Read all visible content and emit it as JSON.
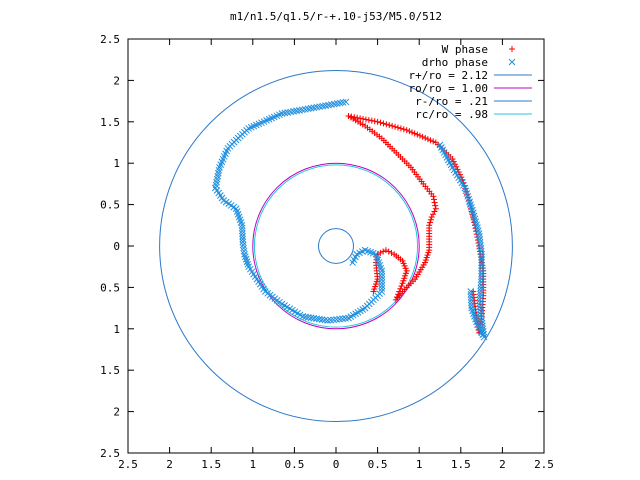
{
  "title": "m1/n1.5/q1.5/r-+.10-j53/M5.0/512",
  "colors": {
    "w_phase": "#ff0000",
    "drho_phase": "#1f8fdf",
    "r_plus": "#2b78c9",
    "r_o": "#c000c0",
    "r_minus": "#2b78c9",
    "r_c": "#22c8dd",
    "axis": "#000000"
  },
  "chart_data": {
    "type": "scatter",
    "title": "m1/n1.5/q1.5/r-+.10-j53/M5.0/512",
    "xlabel": "",
    "ylabel": "",
    "xlim": [
      -2.5,
      2.5
    ],
    "ylim": [
      -2.5,
      2.5
    ],
    "x_tick_values": [
      -2.5,
      -2,
      -1.5,
      -1,
      -0.5,
      0,
      0.5,
      1,
      1.5,
      2,
      2.5
    ],
    "x_tick_labels": [
      "2.5",
      "2",
      "1.5",
      "1",
      "0.5",
      "0",
      "0.5",
      "1",
      "1.5",
      "2",
      "2.5"
    ],
    "y_tick_values": [
      2.5,
      2,
      1.5,
      1,
      0.5,
      0,
      -0.5,
      -1,
      -1.5,
      -2,
      -2.5
    ],
    "y_tick_labels": [
      "2.5",
      "2",
      "1.5",
      "1",
      "0.5",
      "0",
      "0.5",
      "1",
      "1.5",
      "2",
      "2.5"
    ],
    "legend_position": "top-right",
    "legend": [
      {
        "label": "W phase",
        "marker": "plus",
        "color": "#ff0000"
      },
      {
        "label": "drho phase",
        "marker": "x",
        "color": "#1f8fdf"
      },
      {
        "label": "r+/ro = 2.12",
        "marker": "line",
        "color": "#2b78c9"
      },
      {
        "label": "ro/ro = 1.00",
        "marker": "line",
        "color": "#c000c0"
      },
      {
        "label": "r-/ro = .21",
        "marker": "line",
        "color": "#2b78c9"
      },
      {
        "label": "rc/ro = .98",
        "marker": "line",
        "color": "#22c8dd"
      }
    ],
    "circles": [
      {
        "name": "r+/ro",
        "radius": 2.12
      },
      {
        "name": "ro/ro",
        "radius": 1.0
      },
      {
        "name": "r-/ro",
        "radius": 0.21
      },
      {
        "name": "rc/ro",
        "radius": 0.98
      }
    ],
    "series": [
      {
        "name": "W phase",
        "curves": [
          [
            [
              0.15,
              1.57
            ],
            [
              0.35,
              1.45
            ],
            [
              0.55,
              1.3
            ],
            [
              0.75,
              1.1
            ],
            [
              0.9,
              0.95
            ],
            [
              1.05,
              0.75
            ],
            [
              1.17,
              0.6
            ],
            [
              1.2,
              0.45
            ],
            [
              1.15,
              0.35
            ],
            [
              1.12,
              0.25
            ],
            [
              1.12,
              0.05
            ],
            [
              1.12,
              -0.05
            ],
            [
              1.07,
              -0.2
            ],
            [
              0.95,
              -0.4
            ],
            [
              0.8,
              -0.55
            ],
            [
              0.72,
              -0.65
            ],
            [
              0.8,
              -0.45
            ],
            [
              0.85,
              -0.3
            ],
            [
              0.8,
              -0.18
            ],
            [
              0.7,
              -0.1
            ],
            [
              0.6,
              -0.05
            ],
            [
              0.5,
              -0.1
            ],
            [
              0.48,
              -0.2
            ],
            [
              0.5,
              -0.4
            ],
            [
              0.45,
              -0.55
            ]
          ],
          [
            [
              0.15,
              1.57
            ],
            [
              0.5,
              1.5
            ],
            [
              0.85,
              1.4
            ],
            [
              1.2,
              1.25
            ],
            [
              1.4,
              1.05
            ],
            [
              1.52,
              0.8
            ],
            [
              1.6,
              0.55
            ],
            [
              1.67,
              0.25
            ],
            [
              1.72,
              0.0
            ],
            [
              1.77,
              -0.3
            ],
            [
              1.77,
              -0.6
            ],
            [
              1.75,
              -0.85
            ],
            [
              1.72,
              -1.05
            ],
            [
              1.68,
              -0.8
            ],
            [
              1.65,
              -0.55
            ]
          ]
        ]
      },
      {
        "name": "drho phase",
        "curves": [
          [
            [
              0.12,
              1.74
            ],
            [
              -0.65,
              1.6
            ],
            [
              -1.05,
              1.42
            ],
            [
              -1.2,
              1.28
            ],
            [
              -1.3,
              1.18
            ],
            [
              -1.4,
              0.95
            ],
            [
              -1.45,
              0.7
            ],
            [
              -1.35,
              0.55
            ],
            [
              -1.2,
              0.45
            ],
            [
              -1.13,
              0.25
            ],
            [
              -1.12,
              0.05
            ],
            [
              -1.1,
              -0.1
            ],
            [
              -1.05,
              -0.25
            ],
            [
              -0.85,
              -0.55
            ],
            [
              -0.65,
              -0.7
            ],
            [
              -0.4,
              -0.85
            ],
            [
              -0.1,
              -0.9
            ],
            [
              0.15,
              -0.87
            ],
            [
              0.35,
              -0.75
            ],
            [
              0.55,
              -0.55
            ],
            [
              0.55,
              -0.3
            ],
            [
              0.48,
              -0.1
            ],
            [
              0.35,
              -0.05
            ],
            [
              0.25,
              -0.1
            ],
            [
              0.2,
              -0.2
            ]
          ],
          [
            [
              1.25,
              1.22
            ],
            [
              1.4,
              0.95
            ],
            [
              1.55,
              0.7
            ],
            [
              1.65,
              0.4
            ],
            [
              1.72,
              0.15
            ],
            [
              1.75,
              -0.1
            ],
            [
              1.75,
              -0.4
            ],
            [
              1.73,
              -0.65
            ],
            [
              1.75,
              -0.9
            ],
            [
              1.78,
              -1.1
            ],
            [
              1.7,
              -0.95
            ],
            [
              1.63,
              -0.75
            ],
            [
              1.62,
              -0.55
            ]
          ]
        ]
      }
    ]
  }
}
